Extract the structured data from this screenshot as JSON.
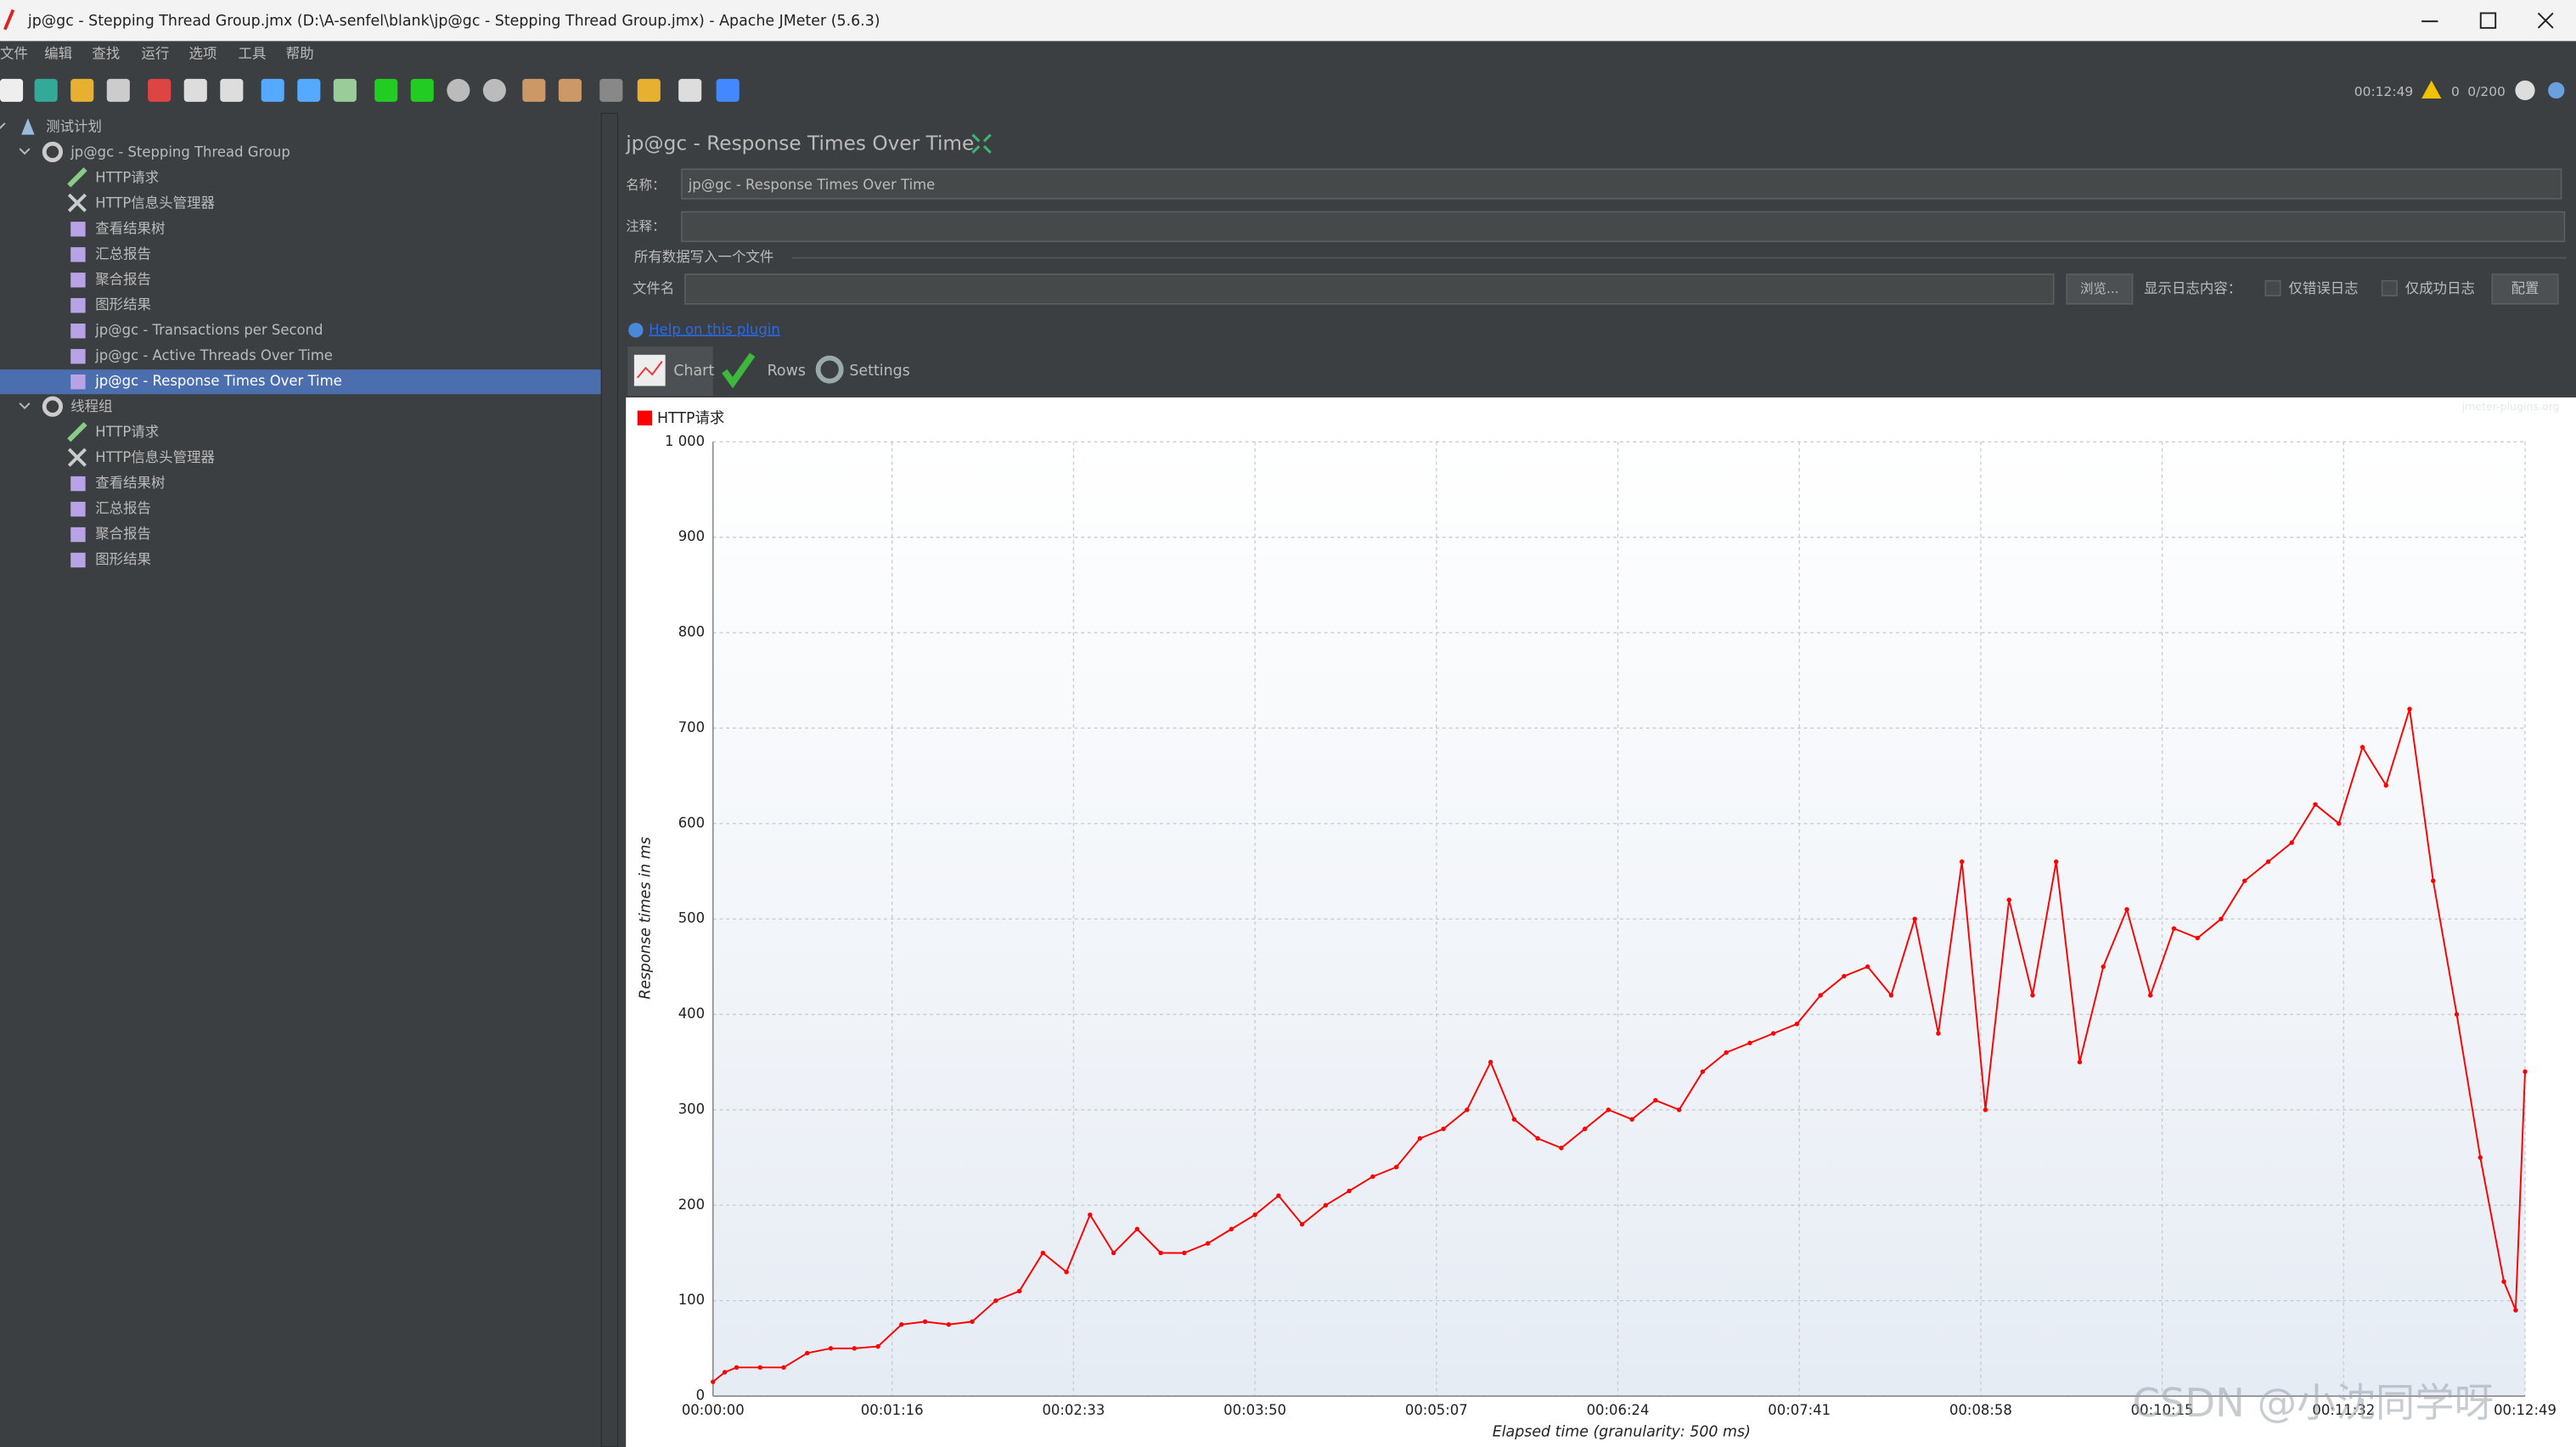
{
  "window": {
    "title": "jp@gc - Stepping Thread Group.jmx (D:\\A-senfel\\blank\\jp@gc - Stepping Thread Group.jmx) - Apache JMeter (5.6.3)"
  },
  "menu": [
    "文件",
    "编辑",
    "查找",
    "运行",
    "选项",
    "工具",
    "帮助"
  ],
  "status": {
    "time": "00:12:49",
    "errors": "0",
    "threads": "0/200"
  },
  "tree": [
    "测试计划",
    "jp@gc - Stepping Thread Group",
    "HTTP请求",
    "HTTP信息头管理器",
    "查看结果树",
    "汇总报告",
    "聚合报告",
    "图形结果",
    "jp@gc - Transactions per Second",
    "jp@gc - Active Threads Over Time",
    "jp@gc - Response Times Over Time",
    "线程组",
    "HTTP请求",
    "HTTP信息头管理器",
    "查看结果树",
    "汇总报告",
    "聚合报告",
    "图形结果"
  ],
  "panel": {
    "title": "jp@gc - Response Times Over Time",
    "name_label": "名称：",
    "name_value": "jp@gc - Response Times Over Time",
    "comment_label": "注释：",
    "file_section": "所有数据写入一个文件",
    "file_label": "文件名",
    "browse": "浏览...",
    "log_label": "显示日志内容：",
    "errors_only": "仅错误日志",
    "success_only": "仅成功日志",
    "configure": "配置",
    "help": "Help on this plugin",
    "tabs": [
      "Chart",
      "Rows",
      "Settings"
    ]
  },
  "watermark": "CSDN @小沈同学呀",
  "chart_data": {
    "type": "line",
    "source": "jmeter-plugins.org",
    "x_label": "Elapsed time (granularity: 500 ms)",
    "y_label": "Response times in ms",
    "grid": true,
    "xlim": [
      0,
      769
    ],
    "ylim": [
      0,
      1000
    ],
    "xticks": [
      {
        "value": 0,
        "label": "00:00:00"
      },
      {
        "value": 76,
        "label": "00:01:16"
      },
      {
        "value": 153,
        "label": "00:02:33"
      },
      {
        "value": 230,
        "label": "00:03:50"
      },
      {
        "value": 307,
        "label": "00:05:07"
      },
      {
        "value": 384,
        "label": "00:06:24"
      },
      {
        "value": 461,
        "label": "00:07:41"
      },
      {
        "value": 538,
        "label": "00:08:58"
      },
      {
        "value": 615,
        "label": "00:10:15"
      },
      {
        "value": 692,
        "label": "00:11:32"
      },
      {
        "value": 769,
        "label": "00:12:49"
      }
    ],
    "yticks": [
      0,
      100,
      200,
      300,
      400,
      500,
      600,
      700,
      800,
      900,
      {
        "value": 1000,
        "label": "1 000"
      }
    ],
    "x": [
      0,
      5,
      10,
      20,
      30,
      40,
      50,
      60,
      70,
      80,
      90,
      100,
      110,
      120,
      130,
      140,
      150,
      160,
      170,
      180,
      190,
      200,
      210,
      220,
      230,
      240,
      250,
      260,
      270,
      280,
      290,
      300,
      310,
      320,
      330,
      340,
      350,
      360,
      370,
      380,
      390,
      400,
      410,
      420,
      430,
      440,
      450,
      460,
      470,
      480,
      490,
      500,
      510,
      520,
      530,
      540,
      550,
      560,
      570,
      580,
      590,
      600,
      610,
      620,
      630,
      640,
      650,
      660,
      670,
      680,
      690,
      700,
      710,
      720,
      730,
      740,
      750,
      760,
      765,
      769
    ],
    "series": [
      {
        "name": "HTTP请求",
        "color": "#ff0000",
        "values": [
          15,
          25,
          30,
          30,
          30,
          45,
          50,
          50,
          52,
          75,
          78,
          75,
          78,
          100,
          110,
          150,
          130,
          190,
          150,
          175,
          150,
          150,
          160,
          175,
          190,
          210,
          180,
          200,
          215,
          230,
          240,
          270,
          280,
          300,
          350,
          290,
          270,
          260,
          280,
          300,
          290,
          310,
          300,
          340,
          360,
          370,
          380,
          390,
          420,
          440,
          450,
          420,
          500,
          380,
          560,
          300,
          520,
          420,
          560,
          350,
          450,
          510,
          420,
          490,
          480,
          500,
          540,
          560,
          580,
          620,
          600,
          680,
          640,
          720,
          540,
          400,
          250,
          120,
          90,
          340
        ]
      }
    ]
  }
}
